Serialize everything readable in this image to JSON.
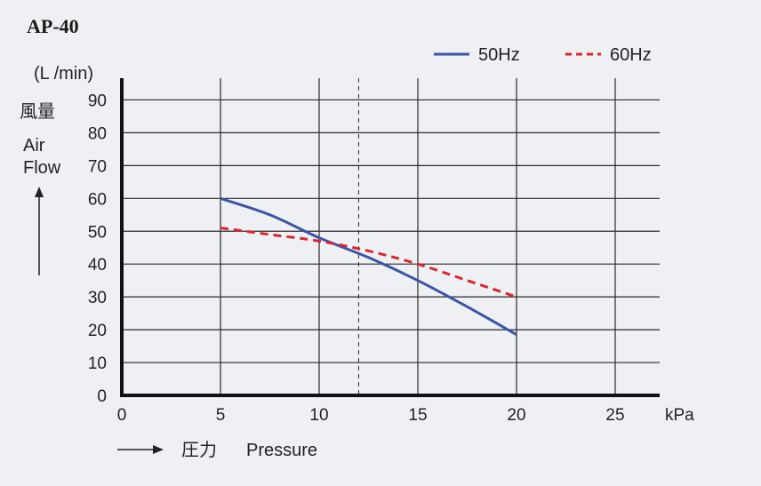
{
  "chart_data": {
    "type": "line",
    "title": "AP-40",
    "y_unit": "(L /min)",
    "ylabel_jp": "風量",
    "ylabel_en_1": "Air",
    "ylabel_en_2": "Flow",
    "xlabel_jp": "圧力",
    "xlabel_en": "Pressure",
    "x_unit": "kPa",
    "xlim": [
      0,
      27
    ],
    "ylim": [
      0,
      92
    ],
    "x_ticks": [
      0,
      5,
      10,
      15,
      20,
      25
    ],
    "y_ticks": [
      0,
      10,
      20,
      30,
      40,
      50,
      60,
      70,
      80,
      90
    ],
    "x_tick_labels": [
      "0",
      "5",
      "10",
      "15",
      "20",
      "25"
    ],
    "y_tick_labels": [
      "0",
      "10",
      "20",
      "30",
      "40",
      "50",
      "60",
      "70",
      "80",
      "90"
    ],
    "grid": true,
    "reference_line_x": 12,
    "legend_position": "top-right",
    "series": [
      {
        "name": "50Hz",
        "color": "#3a55a6",
        "style": "solid",
        "x": [
          5,
          7.5,
          10,
          12.5,
          15,
          17.5,
          20
        ],
        "y": [
          60,
          55,
          48,
          42,
          35,
          27,
          18.5
        ]
      },
      {
        "name": "60Hz",
        "color": "#d9262e",
        "style": "dashed",
        "x": [
          5,
          7.5,
          10,
          12.5,
          15,
          17.5,
          20
        ],
        "y": [
          51,
          49,
          47,
          44,
          40,
          35,
          30
        ]
      }
    ]
  }
}
